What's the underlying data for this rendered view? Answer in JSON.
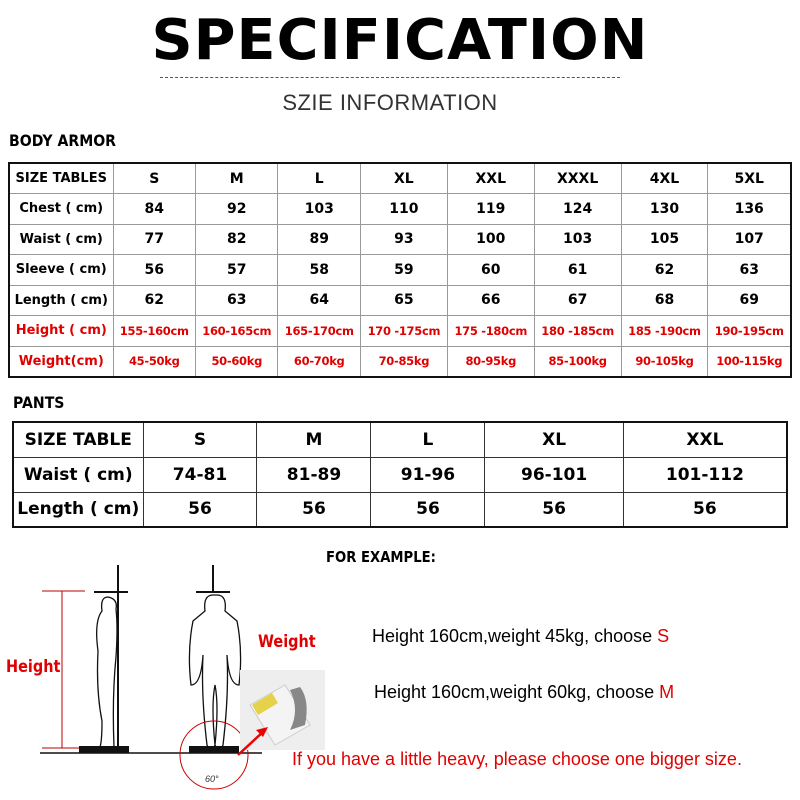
{
  "header": {
    "title": "SPECIFICATION",
    "subtitle": "SZIE INFORMATION"
  },
  "body_armor": {
    "label": "BODY ARMOR",
    "columns": [
      "SIZE TABLES",
      "S",
      "M",
      "L",
      "XL",
      "XXL",
      "XXXL",
      "4XL",
      "5XL"
    ],
    "rows": [
      {
        "label": "Chest ( cm)",
        "values": [
          "84",
          "92",
          "103",
          "110",
          "119",
          "124",
          "130",
          "136"
        ],
        "red": false
      },
      {
        "label": "Waist ( cm)",
        "values": [
          "77",
          "82",
          "89",
          "93",
          "100",
          "103",
          "105",
          "107"
        ],
        "red": false
      },
      {
        "label": "Sleeve ( cm)",
        "values": [
          "56",
          "57",
          "58",
          "59",
          "60",
          "61",
          "62",
          "63"
        ],
        "red": false
      },
      {
        "label": "Length ( cm)",
        "values": [
          "62",
          "63",
          "64",
          "65",
          "66",
          "67",
          "68",
          "69"
        ],
        "red": false
      },
      {
        "label": "Height ( cm)",
        "values": [
          "155-160cm",
          "160-165cm",
          "165-170cm",
          "170 -175cm",
          "175 -180cm",
          "180 -185cm",
          "185 -190cm",
          "190-195cm"
        ],
        "red": true
      },
      {
        "label": "Weight(cm)",
        "values": [
          "45-50kg",
          "50-60kg",
          "60-70kg",
          "70-85kg",
          "80-95kg",
          "85-100kg",
          "90-105kg",
          "100-115kg"
        ],
        "red": true
      }
    ]
  },
  "pants": {
    "label": "PANTS",
    "columns": [
      "SIZE TABLE",
      "S",
      "M",
      "L",
      "XL",
      "XXL"
    ],
    "rows": [
      {
        "label": "Waist ( cm)",
        "values": [
          "74-81",
          "81-89",
          "91-96",
          "96-101",
          "101-112"
        ]
      },
      {
        "label": "Length ( cm)",
        "values": [
          "56",
          "56",
          "56",
          "56",
          "56"
        ]
      }
    ]
  },
  "example": {
    "title": "FOR EXAMPLE:",
    "lines": [
      {
        "text": "Height 160cm,weight 45kg, choose ",
        "size": "S"
      },
      {
        "text": "Height 160cm,weight 60kg, choose ",
        "size": "M"
      }
    ],
    "note": "If you have a little heavy, please choose one bigger size."
  },
  "figure": {
    "height_label": "Height",
    "weight_label": "Weight",
    "angle_label": "60°"
  },
  "colors": {
    "accent": "#e00000"
  }
}
